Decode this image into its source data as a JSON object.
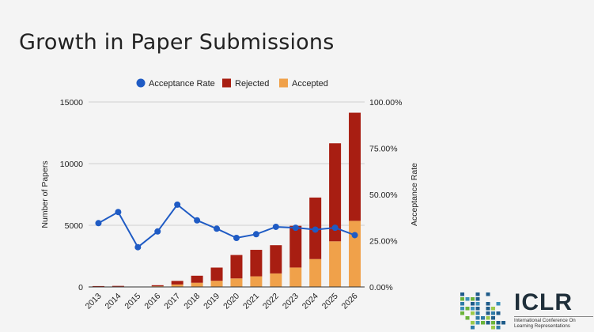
{
  "slide": {
    "title": "Growth in Paper Submissions"
  },
  "logo": {
    "wordmark": "ICLR",
    "subtitle": "International Conference On Learning Representations"
  },
  "colors": {
    "accepted": "#f0a14a",
    "rejected": "#a81e12",
    "rate": "#1f5bc4"
  },
  "chart_data": {
    "type": "bar",
    "stacked": true,
    "categories": [
      "2013",
      "2014",
      "2015",
      "2016",
      "2017",
      "2018",
      "2019",
      "2020",
      "2021",
      "2022",
      "2023",
      "2024",
      "2025",
      "2026"
    ],
    "series": [
      {
        "name": "Accepted",
        "axis": "left",
        "values": [
          20,
          35,
          0,
          60,
          200,
          340,
          500,
          690,
          860,
          1095,
          1575,
          2260,
          3700,
          5360
        ]
      },
      {
        "name": "Rejected",
        "axis": "left",
        "values": [
          50,
          50,
          0,
          80,
          290,
          570,
          1070,
          1900,
          2150,
          2290,
          3380,
          4990,
          7950,
          8770
        ]
      },
      {
        "name": "Acceptance Rate",
        "type": "line",
        "axis": "right",
        "values": [
          34.5,
          40.5,
          21.5,
          30,
          44.5,
          36,
          31.5,
          26.5,
          28.5,
          32.5,
          32,
          31,
          32,
          28
        ]
      }
    ],
    "legend": [
      "Acceptance Rate",
      "Rejected",
      "Accepted"
    ],
    "legend_position": "top",
    "ylabel": "Number of Papers",
    "y2label": "Acceptance Rate",
    "ylim": [
      0,
      15000
    ],
    "y2lim": [
      0,
      100
    ],
    "yticks": [
      "0",
      "5000",
      "10000",
      "15000"
    ],
    "y2ticks": [
      "0.00%",
      "25.00%",
      "50.00%",
      "75.00%",
      "100.00%"
    ],
    "grid": true
  }
}
